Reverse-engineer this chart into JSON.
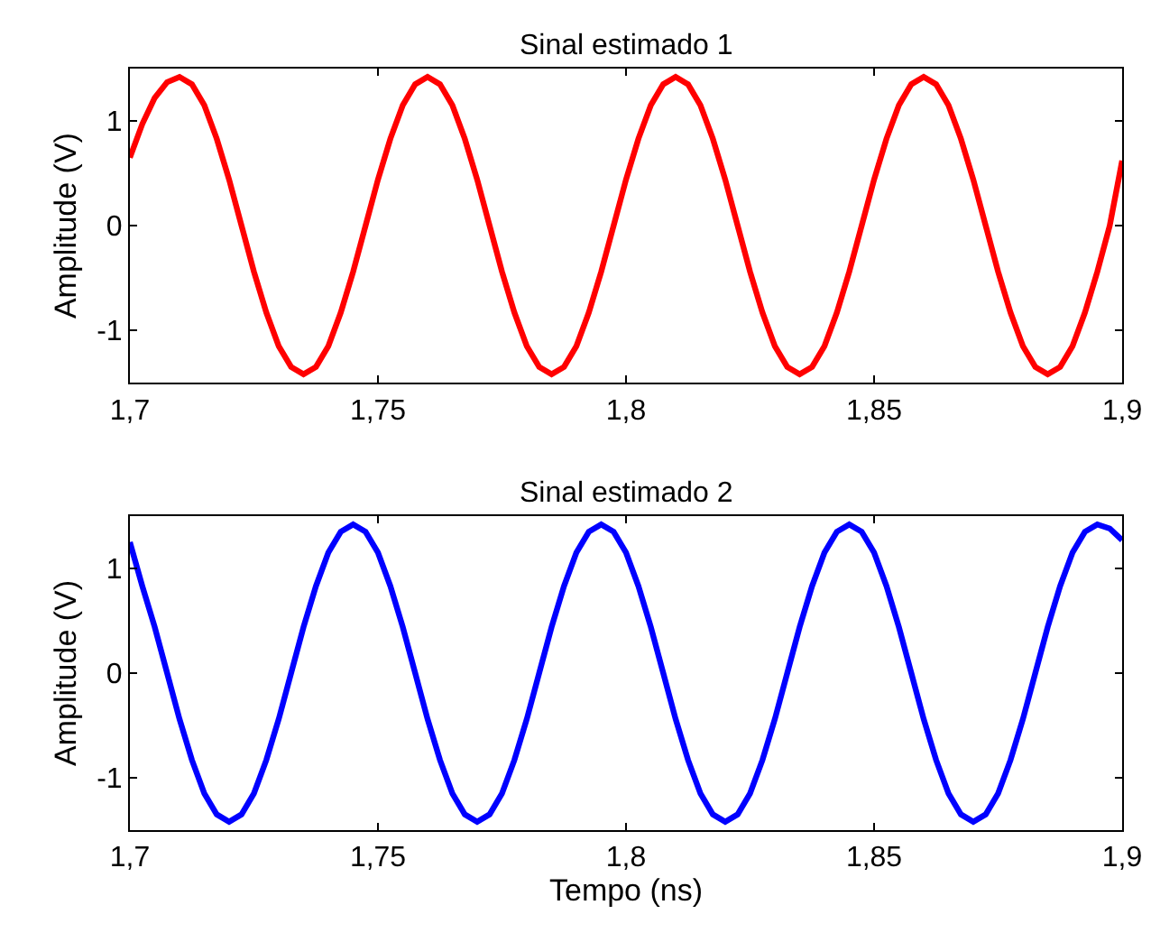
{
  "chart_data": [
    {
      "type": "line",
      "title": "Sinal estimado 1",
      "ylabel": "Amplitude (V)",
      "x": [
        1.7,
        1.7025,
        1.705,
        1.7075,
        1.71,
        1.7125,
        1.715,
        1.7175,
        1.72,
        1.7225,
        1.725,
        1.7275,
        1.73,
        1.7325,
        1.735,
        1.7375,
        1.74,
        1.7425,
        1.745,
        1.7475,
        1.75,
        1.7525,
        1.755,
        1.7575,
        1.76,
        1.7625,
        1.765,
        1.7675,
        1.77,
        1.7725,
        1.775,
        1.7775,
        1.78,
        1.7825,
        1.785,
        1.7875,
        1.79,
        1.7925,
        1.795,
        1.7975,
        1.8,
        1.8025,
        1.805,
        1.8075,
        1.81,
        1.8125,
        1.815,
        1.8175,
        1.82,
        1.8225,
        1.825,
        1.8275,
        1.83,
        1.8325,
        1.835,
        1.8375,
        1.84,
        1.8425,
        1.845,
        1.8475,
        1.85,
        1.8525,
        1.855,
        1.8575,
        1.86,
        1.8625,
        1.865,
        1.8675,
        1.87,
        1.8725,
        1.875,
        1.8775,
        1.88,
        1.8825,
        1.885,
        1.8875,
        1.89,
        1.8925,
        1.895,
        1.8975,
        1.9
      ],
      "series": [
        {
          "color": "#ff0000",
          "values": [
            0.65,
            0.97,
            1.22,
            1.37,
            1.42,
            1.35,
            1.15,
            0.83,
            0.44,
            0,
            -0.44,
            -0.83,
            -1.15,
            -1.35,
            -1.42,
            -1.35,
            -1.15,
            -0.83,
            -0.44,
            0,
            0.44,
            0.83,
            1.15,
            1.35,
            1.42,
            1.35,
            1.15,
            0.83,
            0.44,
            0,
            -0.44,
            -0.83,
            -1.15,
            -1.35,
            -1.42,
            -1.35,
            -1.15,
            -0.83,
            -0.44,
            0,
            0.44,
            0.83,
            1.15,
            1.35,
            1.42,
            1.35,
            1.15,
            0.83,
            0.44,
            0,
            -0.44,
            -0.83,
            -1.15,
            -1.35,
            -1.42,
            -1.35,
            -1.15,
            -0.83,
            -0.44,
            0,
            0.44,
            0.83,
            1.15,
            1.35,
            1.42,
            1.35,
            1.15,
            0.83,
            0.44,
            0,
            -0.44,
            -0.83,
            -1.15,
            -1.35,
            -1.42,
            -1.35,
            -1.15,
            -0.83,
            -0.44,
            0,
            0.62
          ]
        }
      ],
      "xlim": [
        1.7,
        1.9
      ],
      "xticks": [
        {
          "value": 1.7,
          "label": "1,7"
        },
        {
          "value": 1.75,
          "label": "1,75"
        },
        {
          "value": 1.8,
          "label": "1,8"
        },
        {
          "value": 1.85,
          "label": "1,85"
        },
        {
          "value": 1.9,
          "label": "1,9"
        }
      ],
      "ylim": [
        -1.5,
        1.5
      ],
      "yticks": [
        -1,
        0,
        1
      ],
      "line_style": "solid",
      "marker": "none"
    },
    {
      "type": "line",
      "title": "Sinal estimado 2",
      "xlabel": "Tempo (ns)",
      "ylabel": "Amplitude (V)",
      "x": [
        1.7,
        1.7025,
        1.705,
        1.7075,
        1.71,
        1.7125,
        1.715,
        1.7175,
        1.72,
        1.7225,
        1.725,
        1.7275,
        1.73,
        1.7325,
        1.735,
        1.7375,
        1.74,
        1.7425,
        1.745,
        1.7475,
        1.75,
        1.7525,
        1.755,
        1.7575,
        1.76,
        1.7625,
        1.765,
        1.7675,
        1.77,
        1.7725,
        1.775,
        1.7775,
        1.78,
        1.7825,
        1.785,
        1.7875,
        1.79,
        1.7925,
        1.795,
        1.7975,
        1.8,
        1.8025,
        1.805,
        1.8075,
        1.81,
        1.8125,
        1.815,
        1.8175,
        1.82,
        1.8225,
        1.825,
        1.8275,
        1.83,
        1.8325,
        1.835,
        1.8375,
        1.84,
        1.8425,
        1.845,
        1.8475,
        1.85,
        1.8525,
        1.855,
        1.8575,
        1.86,
        1.8625,
        1.865,
        1.8675,
        1.87,
        1.8725,
        1.875,
        1.8775,
        1.88,
        1.8825,
        1.885,
        1.8875,
        1.89,
        1.8925,
        1.895,
        1.8975,
        1.9
      ],
      "series": [
        {
          "color": "#0000ff",
          "values": [
            1.25,
            0.83,
            0.44,
            0,
            -0.44,
            -0.83,
            -1.15,
            -1.35,
            -1.42,
            -1.35,
            -1.15,
            -0.83,
            -0.44,
            0,
            0.44,
            0.83,
            1.15,
            1.35,
            1.42,
            1.35,
            1.15,
            0.83,
            0.44,
            0,
            -0.44,
            -0.83,
            -1.15,
            -1.35,
            -1.42,
            -1.35,
            -1.15,
            -0.83,
            -0.44,
            0,
            0.44,
            0.83,
            1.15,
            1.35,
            1.42,
            1.35,
            1.15,
            0.83,
            0.44,
            0,
            -0.44,
            -0.83,
            -1.15,
            -1.35,
            -1.42,
            -1.35,
            -1.15,
            -0.83,
            -0.44,
            0,
            0.44,
            0.83,
            1.15,
            1.35,
            1.42,
            1.35,
            1.15,
            0.83,
            0.44,
            0,
            -0.44,
            -0.83,
            -1.15,
            -1.35,
            -1.42,
            -1.35,
            -1.15,
            -0.83,
            -0.44,
            0,
            0.44,
            0.83,
            1.15,
            1.35,
            1.42,
            1.38,
            1.27
          ]
        }
      ],
      "xlim": [
        1.7,
        1.9
      ],
      "xticks": [
        {
          "value": 1.7,
          "label": "1,7"
        },
        {
          "value": 1.75,
          "label": "1,75"
        },
        {
          "value": 1.8,
          "label": "1,8"
        },
        {
          "value": 1.85,
          "label": "1,85"
        },
        {
          "value": 1.9,
          "label": "1,9"
        }
      ],
      "ylim": [
        -1.5,
        1.5
      ],
      "yticks": [
        -1,
        0,
        1
      ],
      "line_style": "solid",
      "marker": "none"
    }
  ]
}
